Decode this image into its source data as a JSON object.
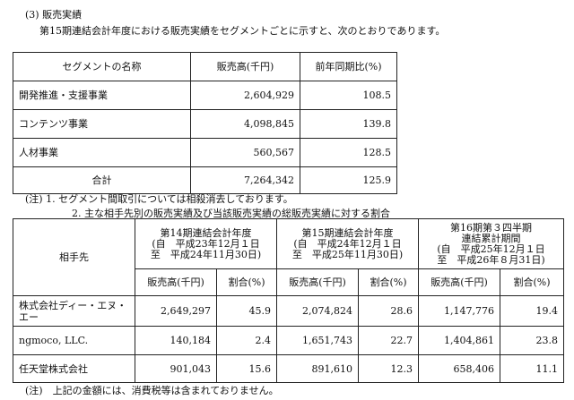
{
  "section": {
    "heading": "(3) 販売実績",
    "intro": "第15期連結会計年度における販売実績をセグメントごとに示すと、次のとおりであります。"
  },
  "segment_table": {
    "headers": [
      "セグメントの名称",
      "販売高(千円)",
      "前年同期比(%)"
    ],
    "rows": [
      {
        "name": "開発推進・支援事業",
        "sales": "2,604,929",
        "yoy": "108.5"
      },
      {
        "name": "コンテンツ事業",
        "sales": "4,098,845",
        "yoy": "139.8"
      },
      {
        "name": "人材事業",
        "sales": "560,567",
        "yoy": "128.5"
      },
      {
        "name": "合計",
        "sales": "7,264,342",
        "yoy": "125.9"
      }
    ]
  },
  "notes": {
    "note1": "(注) 1. セグメント間取引については相殺消去しております。",
    "note2": "2. 主な相手先別の販売実績及び当該販売実績の総販売実績に対する割合",
    "footer": "(注)　上記の金額には、消費税等は含まれておりません。"
  },
  "customer_table": {
    "partner_header": "相手先",
    "periods": [
      {
        "title": "第14期連結会計年度",
        "from": "(自　平成23年12月１日",
        "to": "至　平成24年11月30日)"
      },
      {
        "title": "第15期連結会計年度",
        "from": "(自　平成24年12月１日",
        "to": "至　平成25年11月30日)"
      },
      {
        "title": "第16期第３四半期",
        "title2": "連結累計期間",
        "from": "(自　平成25年12月１日",
        "to": "至　平成26年８月31日)"
      }
    ],
    "sub_headers": {
      "sales": "販売高(千円)",
      "ratio": "割合(%)"
    },
    "rows": [
      {
        "name": "株式会社ディー・エヌ・",
        "name2": "エー",
        "values": [
          "2,649,297",
          "45.9",
          "2,074,824",
          "28.6",
          "1,147,776",
          "19.4"
        ]
      },
      {
        "name": "ngmoco, LLC.",
        "values": [
          "140,184",
          "2.4",
          "1,651,743",
          "22.7",
          "1,404,861",
          "23.8"
        ]
      },
      {
        "name": "任天堂株式会社",
        "values": [
          "901,043",
          "15.6",
          "891,610",
          "12.3",
          "658,406",
          "11.1"
        ]
      }
    ]
  }
}
